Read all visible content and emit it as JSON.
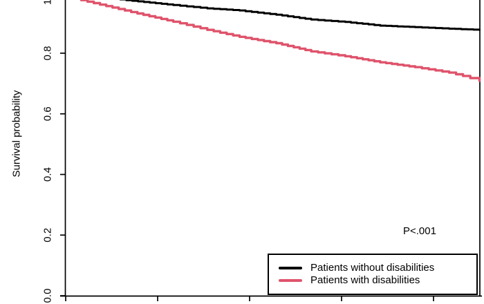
{
  "figure": {
    "kind": "kaplan-meier-survival-plot",
    "background_color": "#ffffff",
    "p_value_annotation": "P<.001"
  },
  "chart_data": {
    "type": "line",
    "subtype": "kaplan-meier-step",
    "title": "",
    "xlabel": "",
    "ylabel": "Survival probability",
    "grid": false,
    "x_axis": {
      "tick_positions": [
        0,
        1,
        2,
        3,
        4
      ],
      "tick_labels": [
        "",
        "",
        "",
        "",
        ""
      ],
      "note": "x tick labels are cropped out of the visible image",
      "range": [
        0,
        4.5
      ]
    },
    "y_axis": {
      "tick_values": [
        0.0,
        0.2,
        0.4,
        0.6,
        0.8,
        1.0
      ],
      "tick_labels": [
        "0.0",
        "0.2",
        "0.4",
        "0.6",
        "0.8",
        "1"
      ],
      "range": [
        0,
        1
      ]
    },
    "legend": {
      "position": "bottom-right",
      "border": true
    },
    "annotations": [
      {
        "text": "P<.001",
        "position": "right-center-above-legend"
      }
    ],
    "series": [
      {
        "name": "Patients without disabilities",
        "color": "#000000",
        "points": [
          [
            0.0,
            1.0
          ],
          [
            0.66,
            0.975
          ],
          [
            1.17,
            0.959
          ],
          [
            1.54,
            0.948
          ],
          [
            1.89,
            0.941
          ],
          [
            2.29,
            0.927
          ],
          [
            2.67,
            0.911
          ],
          [
            3.04,
            0.903
          ],
          [
            3.42,
            0.891
          ],
          [
            3.8,
            0.886
          ],
          [
            4.17,
            0.881
          ],
          [
            4.5,
            0.877
          ]
        ]
      },
      {
        "name": "Patients with disabilities",
        "color": "#DF536B",
        "points": [
          [
            0.0,
            1.0
          ],
          [
            0.17,
            0.975
          ],
          [
            0.78,
            0.931
          ],
          [
            1.17,
            0.904
          ],
          [
            1.54,
            0.877
          ],
          [
            1.89,
            0.854
          ],
          [
            2.29,
            0.833
          ],
          [
            2.67,
            0.806
          ],
          [
            3.04,
            0.79
          ],
          [
            3.42,
            0.77
          ],
          [
            3.8,
            0.754
          ],
          [
            4.17,
            0.736
          ],
          [
            4.32,
            0.725
          ],
          [
            4.4,
            0.718
          ],
          [
            4.5,
            0.709
          ]
        ]
      }
    ]
  }
}
